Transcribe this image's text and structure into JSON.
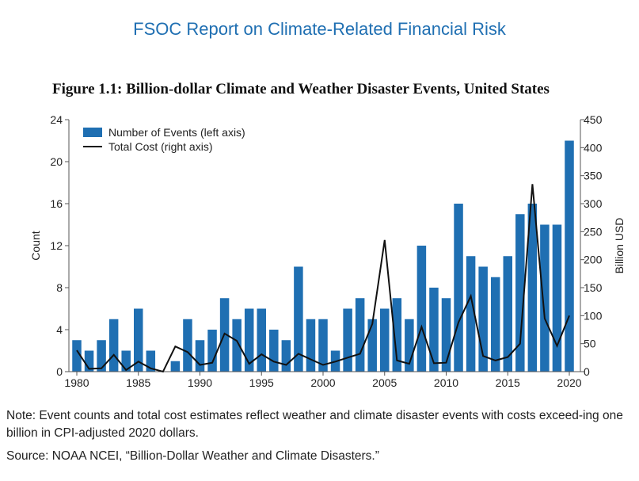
{
  "header": {
    "report_title": "FSOC Report on Climate-Related Financial Risk",
    "figure_title": "Figure 1.1: Billion-dollar Climate and Weather Disaster Events, United States"
  },
  "notes": {
    "note": "Note: Event counts and total cost estimates reflect weather and climate disaster events with costs exceed-ing one billion in CPI-adjusted 2020 dollars.",
    "source": "Source: NOAA NCEI, “Billion-Dollar Weather and Climate Disasters.”"
  },
  "colors": {
    "bar": "#1f6fb2",
    "line": "#111111",
    "axis": "#555555"
  },
  "chart_data": {
    "type": "bar",
    "title": "Figure 1.1: Billion-dollar Climate and Weather Disaster Events, United States",
    "categories": [
      1980,
      1981,
      1982,
      1983,
      1984,
      1985,
      1986,
      1987,
      1988,
      1989,
      1990,
      1991,
      1992,
      1993,
      1994,
      1995,
      1996,
      1997,
      1998,
      1999,
      2000,
      2001,
      2002,
      2003,
      2004,
      2005,
      2006,
      2007,
      2008,
      2009,
      2010,
      2011,
      2012,
      2013,
      2014,
      2015,
      2016,
      2017,
      2018,
      2019,
      2020
    ],
    "x_ticks": [
      "1980",
      "1985",
      "1990",
      "1995",
      "2000",
      "2005",
      "2010",
      "2015",
      "2020"
    ],
    "ylabel_left": "Count",
    "ylabel_right": "Billion USD",
    "ylim_left": [
      0,
      24
    ],
    "yticks_left": [
      "0",
      "4",
      "8",
      "12",
      "16",
      "20",
      "24"
    ],
    "ylim_right": [
      0,
      450
    ],
    "yticks_right": [
      "0",
      "50",
      "100",
      "150",
      "200",
      "250",
      "300",
      "350",
      "400",
      "450"
    ],
    "grid": false,
    "legend_position": "top-left",
    "series": [
      {
        "name": "Number of Events (left axis)",
        "type": "bar",
        "axis": "left",
        "values": [
          3,
          2,
          3,
          5,
          2,
          6,
          2,
          0,
          1,
          5,
          3,
          4,
          7,
          5,
          6,
          6,
          4,
          3,
          10,
          5,
          5,
          2,
          6,
          7,
          5,
          6,
          7,
          5,
          12,
          8,
          7,
          16,
          11,
          10,
          9,
          11,
          15,
          16,
          14,
          14,
          22
        ]
      },
      {
        "name": "Total Cost (right axis)",
        "type": "line",
        "axis": "right",
        "values": [
          38,
          5,
          6,
          30,
          3,
          18,
          6,
          0,
          45,
          35,
          12,
          16,
          68,
          55,
          14,
          31,
          18,
          12,
          32,
          22,
          12,
          18,
          25,
          32,
          85,
          235,
          20,
          14,
          80,
          15,
          16,
          88,
          135,
          28,
          20,
          26,
          50,
          335,
          95,
          46,
          100
        ]
      }
    ]
  }
}
